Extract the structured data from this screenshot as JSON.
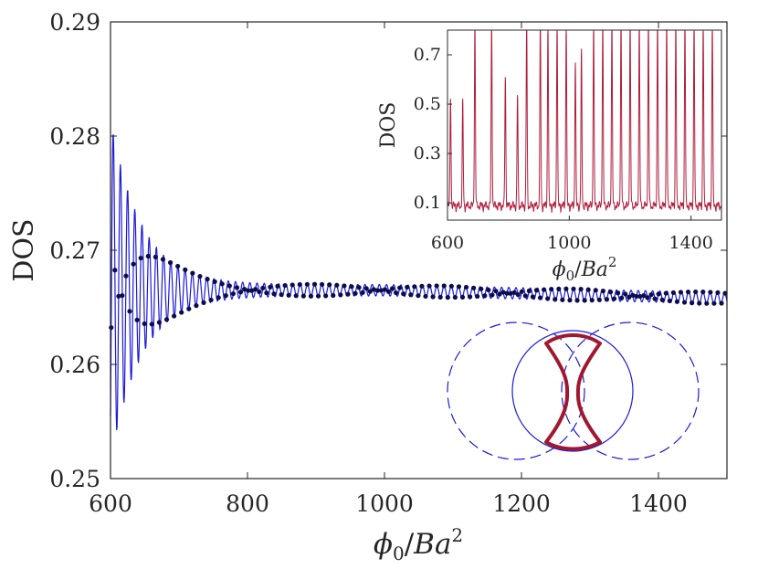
{
  "chart_data": [
    {
      "type": "line",
      "role": "main",
      "ylabel": "DOS",
      "xlabel": "φ₀/Ba²",
      "xlabel_parts": {
        "phi": "ϕ",
        "sub": "0",
        "slash": "/",
        "B": "B",
        "a": "a",
        "sup": "2"
      },
      "xlim": [
        600,
        1500
      ],
      "ylim": [
        0.25,
        0.29
      ],
      "xticks": [
        600,
        800,
        1000,
        1200,
        1400
      ],
      "xtick_labels": [
        "600",
        "800",
        "1000",
        "1200",
        "1400"
      ],
      "yticks": [
        0.25,
        0.26,
        0.27,
        0.28,
        0.29
      ],
      "ytick_labels": [
        "0.25",
        "0.26",
        "0.27",
        "0.28",
        "0.29"
      ],
      "series": [
        {
          "name": "DOS (line)",
          "style": "line",
          "color": "#1a1adb",
          "description": "damped oscillation around 0.2665, amplitude ~0.013 at 610 decaying to ~0.0005 beyond 800",
          "center": 0.2665,
          "start_amplitude": 0.013,
          "decay_length": 45,
          "period": 10.5
        },
        {
          "name": "DOS (markers)",
          "style": "markers",
          "color": "#0d0d4d"
        }
      ]
    },
    {
      "type": "line",
      "role": "inset",
      "ylabel": "DOS",
      "xlabel": "φ₀/Ba²",
      "xlabel_parts": {
        "phi": "ϕ",
        "sub": "0",
        "slash": "/",
        "B": "B",
        "a": "a",
        "sup": "2"
      },
      "xlim": [
        600,
        1500
      ],
      "ylim": [
        0.03,
        0.8
      ],
      "xticks": [
        600,
        1000,
        1400
      ],
      "xtick_labels": [
        "600",
        "1000",
        "1400"
      ],
      "yticks": [
        0.1,
        0.3,
        0.5,
        0.7
      ],
      "ytick_labels": [
        "0.1",
        "0.3",
        "0.5",
        "0.7"
      ],
      "series": [
        {
          "name": "DOS inset",
          "color": "#b01e3c",
          "baseline": 0.06,
          "peaks": [
            {
              "x": 610,
              "y": 0.5
            },
            {
              "x": 650,
              "y": 0.48
            },
            {
              "x": 690,
              "y": 0.8
            },
            {
              "x": 745,
              "y": 0.8
            },
            {
              "x": 790,
              "y": 0.58
            },
            {
              "x": 830,
              "y": 0.51
            },
            {
              "x": 860,
              "y": 0.8
            },
            {
              "x": 905,
              "y": 0.8
            },
            {
              "x": 930,
              "y": 0.8
            },
            {
              "x": 960,
              "y": 0.8
            },
            {
              "x": 990,
              "y": 0.8
            },
            {
              "x": 1020,
              "y": 0.65
            },
            {
              "x": 1040,
              "y": 0.68
            },
            {
              "x": 1080,
              "y": 0.8
            },
            {
              "x": 1110,
              "y": 0.8
            },
            {
              "x": 1140,
              "y": 0.8
            },
            {
              "x": 1170,
              "y": 0.8
            },
            {
              "x": 1200,
              "y": 0.8
            },
            {
              "x": 1230,
              "y": 0.8
            },
            {
              "x": 1260,
              "y": 0.8
            },
            {
              "x": 1290,
              "y": 0.8
            },
            {
              "x": 1320,
              "y": 0.8
            },
            {
              "x": 1350,
              "y": 0.8
            },
            {
              "x": 1380,
              "y": 0.8
            },
            {
              "x": 1410,
              "y": 0.8
            },
            {
              "x": 1440,
              "y": 0.8
            },
            {
              "x": 1470,
              "y": 0.8
            }
          ]
        }
      ]
    }
  ],
  "schematic": {
    "description": "two dashed blue circles overlapping a solid blue circle, with a bold crimson hourglass-shaped Fermi contour",
    "circle_color": "#1a1adb",
    "contour_color": "#a01830"
  }
}
